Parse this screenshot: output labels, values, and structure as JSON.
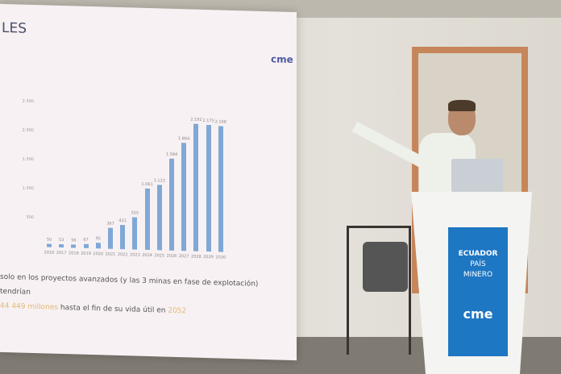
{
  "slide": {
    "title": "LES",
    "logo_text": "cme",
    "text_line1": "solo en los proyectos avanzados (y las 3 minas en fase de explotación) tendrían",
    "text_line2_highlight": "44 449 millones",
    "text_line2_rest": " hasta el fin de su vida útil en ",
    "text_line2_year": "2052"
  },
  "banner": {
    "line1": "ECUADOR",
    "line2": "PAÍS",
    "line3": "MINERO",
    "logo_text": "cme",
    "bg_color": "#1e77c3"
  },
  "chart_data": {
    "type": "bar",
    "categories": [
      "2016",
      "2017",
      "2018",
      "2019",
      "2020",
      "2021",
      "2022",
      "2023",
      "2024",
      "2025",
      "2026",
      "2027",
      "2028",
      "2029",
      "2030"
    ],
    "values": [
      50,
      53,
      56,
      67,
      95,
      367,
      421,
      555,
      1061,
      1123,
      1584,
      1864,
      2192,
      2175,
      2166
    ],
    "value_labels": [
      "50",
      "53",
      "56",
      "67",
      "95",
      "367",
      "421",
      "555",
      "1.061",
      "1.123",
      "1.584",
      "1.864",
      "2.192",
      "2.175",
      "2.166"
    ],
    "yticks": [
      "500",
      "1.000",
      "1.500",
      "2.000",
      "2.500"
    ],
    "ylim": [
      0,
      2500
    ],
    "bar_color": "#7fa8d6"
  }
}
